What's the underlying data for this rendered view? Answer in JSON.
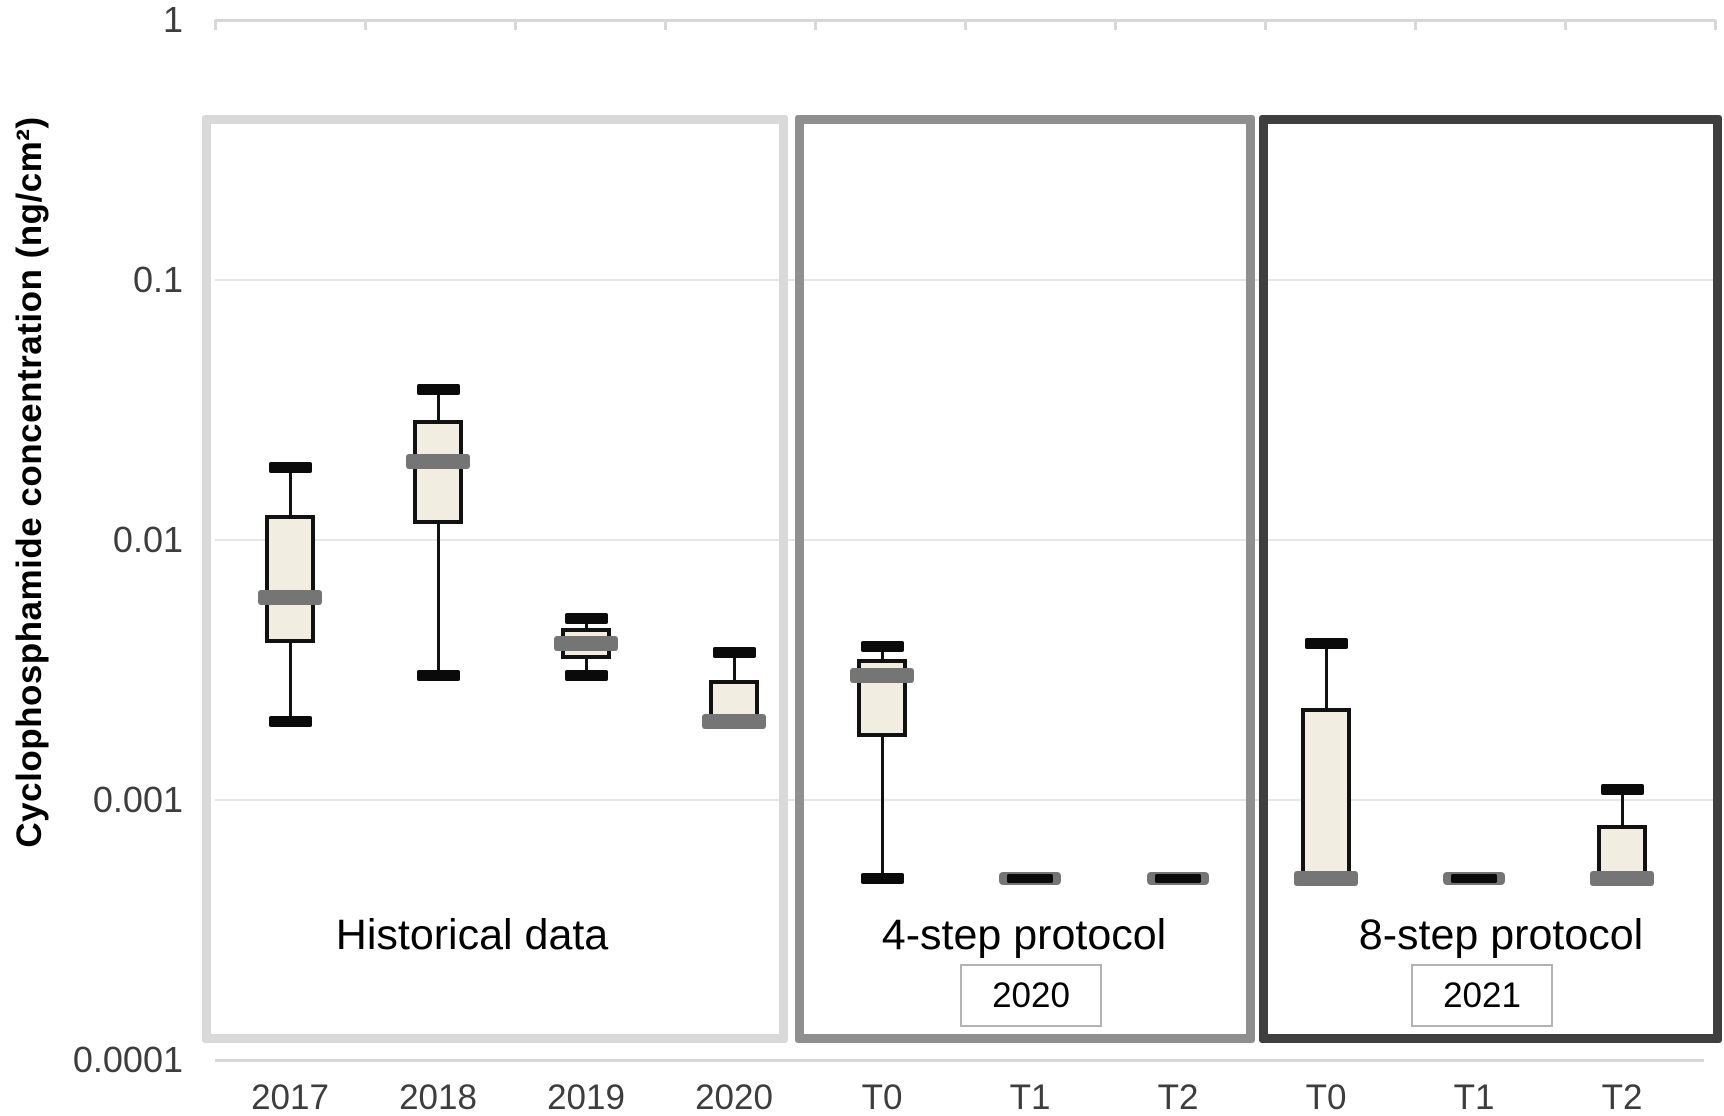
{
  "chart_data": {
    "type": "boxplot",
    "title": "",
    "ylabel": "Cyclophosphamide concentration (ng/cm²)",
    "xlabel": "",
    "y_scale": "log",
    "ylim": [
      0.0001,
      1
    ],
    "y_ticks": [
      {
        "label": "1",
        "value": 1
      },
      {
        "label": "0.1",
        "value": 0.1
      },
      {
        "label": "0.01",
        "value": 0.01
      },
      {
        "label": "0.001",
        "value": 0.001
      },
      {
        "label": "0.0001",
        "value": 0.0001
      }
    ],
    "grid": "horizontal-gridlines-at-decades",
    "legend": "none",
    "panels": [
      {
        "label": "Historical data",
        "year": null,
        "border_color": "#d9d9d9",
        "categories": [
          "2017",
          "2018",
          "2019",
          "2020"
        ]
      },
      {
        "label": "4-step protocol",
        "year": "2020",
        "border_color": "#8f8f8f",
        "categories": [
          "T0",
          "T1",
          "T2"
        ]
      },
      {
        "label": "8-step protocol",
        "year": "2021",
        "border_color": "#3f3f3f",
        "categories": [
          "T0",
          "T1",
          "T2"
        ]
      }
    ],
    "groups": [
      {
        "panel": 0,
        "category": "2017",
        "min": 0.002,
        "q1": 0.004,
        "median": 0.006,
        "q3": 0.0125,
        "max": 0.019
      },
      {
        "panel": 0,
        "category": "2018",
        "min": 0.003,
        "q1": 0.0115,
        "median": 0.02,
        "q3": 0.029,
        "max": 0.038
      },
      {
        "panel": 0,
        "category": "2019",
        "min": 0.003,
        "q1": 0.0035,
        "median": 0.004,
        "q3": 0.0046,
        "max": 0.005
      },
      {
        "panel": 0,
        "category": "2020",
        "min": 0.002,
        "q1": 0.002,
        "median": 0.002,
        "q3": 0.0029,
        "max": 0.0037
      },
      {
        "panel": 1,
        "category": "T0",
        "min": 0.0005,
        "q1": 0.00175,
        "median": 0.003,
        "q3": 0.0035,
        "max": 0.0039
      },
      {
        "panel": 1,
        "category": "T1",
        "min": 0.0005,
        "q1": 0.0005,
        "median": 0.0005,
        "q3": 0.0005,
        "max": 0.0005
      },
      {
        "panel": 1,
        "category": "T2",
        "min": 0.0005,
        "q1": 0.0005,
        "median": 0.0005,
        "q3": 0.0005,
        "max": 0.0005
      },
      {
        "panel": 2,
        "category": "T0",
        "min": 0.0005,
        "q1": 0.0005,
        "median": 0.0005,
        "q3": 0.00225,
        "max": 0.004
      },
      {
        "panel": 2,
        "category": "T1",
        "min": 0.0005,
        "q1": 0.0005,
        "median": 0.0005,
        "q3": 0.0005,
        "max": 0.0005
      },
      {
        "panel": 2,
        "category": "T2",
        "min": 0.0005,
        "q1": 0.0005,
        "median": 0.0005,
        "q3": 0.0008,
        "max": 0.0011
      }
    ],
    "colors": {
      "box_fill": "#f1eee1",
      "box_border": "#111111",
      "whisker": "#111111",
      "whisker_cap": "#0a0a0a",
      "median_band": "#757575",
      "loq_band": "#757575",
      "gridline": "#e7e7e7",
      "axis_line": "#d8d8d8",
      "tick_label": "#3d3d3d",
      "year_badge_border": "#b3b3b3"
    }
  }
}
